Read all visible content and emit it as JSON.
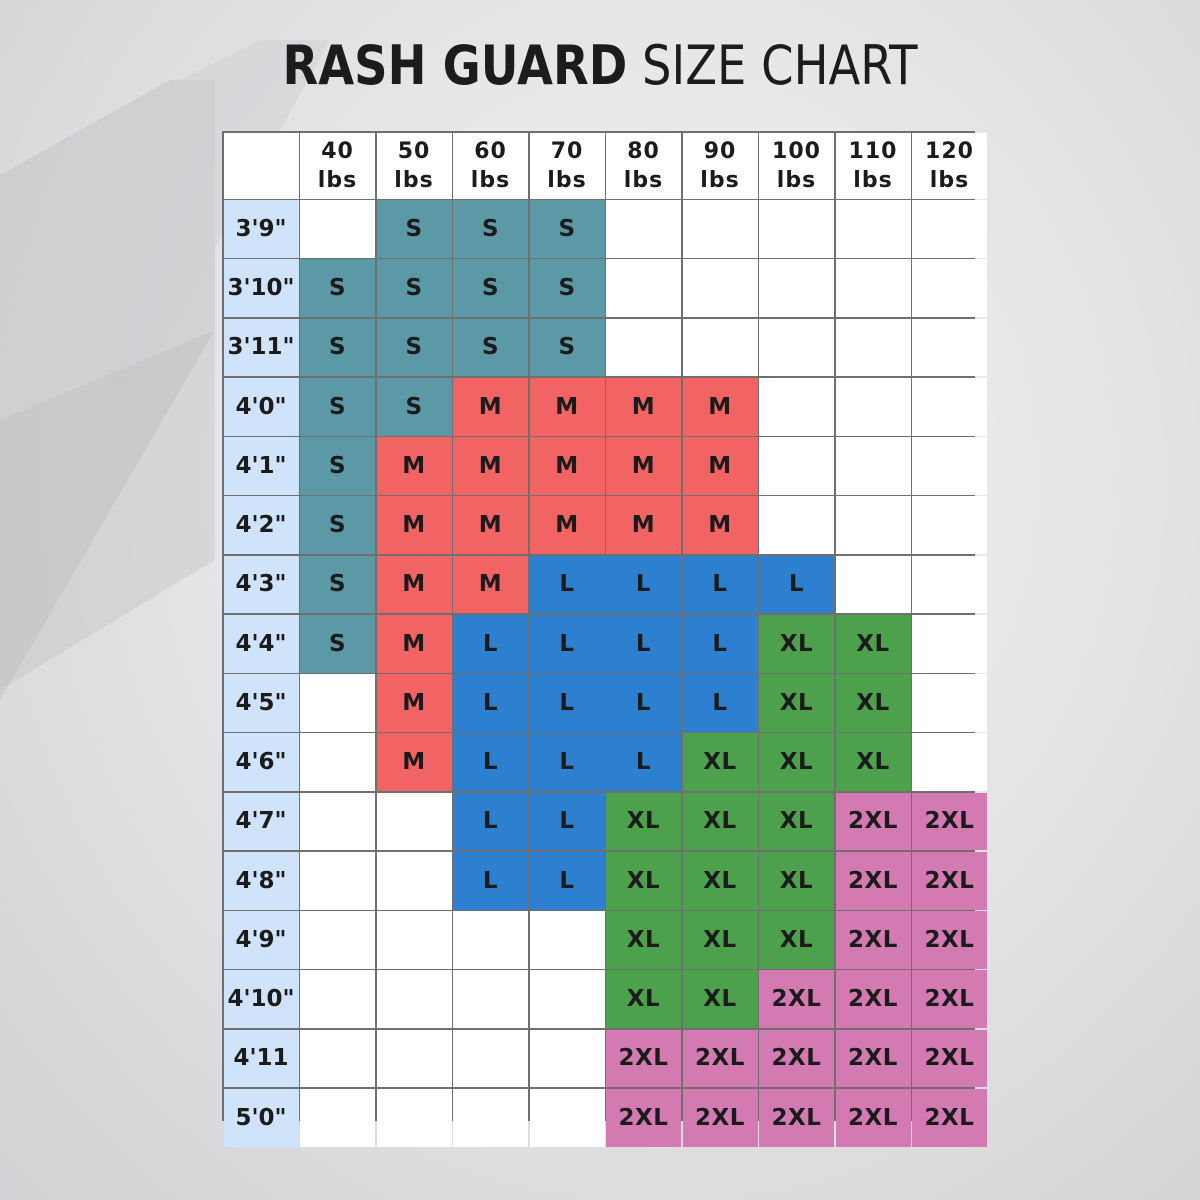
{
  "title": {
    "bold": "RASH GUARD",
    "light": "SIZE CHART"
  },
  "colors": {
    "S": "#5b99a6",
    "M": "#f26463",
    "L": "#2d7fd0",
    "XL": "#4ea14c",
    "2XL": "#d47ab3",
    "row_header": "#cfe3fb",
    "empty": "#ffffff",
    "grid_line": "#6f6f6f"
  },
  "chart_data": {
    "type": "table",
    "columns": [
      {
        "value": "40",
        "unit": "lbs"
      },
      {
        "value": "50",
        "unit": "lbs"
      },
      {
        "value": "60",
        "unit": "lbs"
      },
      {
        "value": "70",
        "unit": "lbs"
      },
      {
        "value": "80",
        "unit": "lbs"
      },
      {
        "value": "90",
        "unit": "lbs"
      },
      {
        "value": "100",
        "unit": "lbs"
      },
      {
        "value": "110",
        "unit": "lbs"
      },
      {
        "value": "120",
        "unit": "lbs"
      }
    ],
    "rows": [
      {
        "height": "3'9\"",
        "cells": [
          "",
          "S",
          "S",
          "S",
          "",
          "",
          "",
          "",
          ""
        ]
      },
      {
        "height": "3'10\"",
        "cells": [
          "S",
          "S",
          "S",
          "S",
          "",
          "",
          "",
          "",
          ""
        ]
      },
      {
        "height": "3'11\"",
        "cells": [
          "S",
          "S",
          "S",
          "S",
          "",
          "",
          "",
          "",
          ""
        ]
      },
      {
        "height": "4'0\"",
        "cells": [
          "S",
          "S",
          "M",
          "M",
          "M",
          "M",
          "",
          "",
          ""
        ]
      },
      {
        "height": "4'1\"",
        "cells": [
          "S",
          "M",
          "M",
          "M",
          "M",
          "M",
          "",
          "",
          ""
        ]
      },
      {
        "height": "4'2\"",
        "cells": [
          "S",
          "M",
          "M",
          "M",
          "M",
          "M",
          "",
          "",
          ""
        ]
      },
      {
        "height": "4'3\"",
        "cells": [
          "S",
          "M",
          "M",
          "L",
          "L",
          "L",
          "L",
          "",
          ""
        ]
      },
      {
        "height": "4'4\"",
        "cells": [
          "S",
          "M",
          "L",
          "L",
          "L",
          "L",
          "XL",
          "XL",
          ""
        ]
      },
      {
        "height": "4'5\"",
        "cells": [
          "",
          "M",
          "L",
          "L",
          "L",
          "L",
          "XL",
          "XL",
          ""
        ]
      },
      {
        "height": "4'6\"",
        "cells": [
          "",
          "M",
          "L",
          "L",
          "L",
          "XL",
          "XL",
          "XL",
          ""
        ]
      },
      {
        "height": "4'7\"",
        "cells": [
          "",
          "",
          "L",
          "L",
          "XL",
          "XL",
          "XL",
          "2XL",
          "2XL"
        ]
      },
      {
        "height": "4'8\"",
        "cells": [
          "",
          "",
          "L",
          "L",
          "XL",
          "XL",
          "XL",
          "2XL",
          "2XL"
        ]
      },
      {
        "height": "4'9\"",
        "cells": [
          "",
          "",
          "",
          "",
          "XL",
          "XL",
          "XL",
          "2XL",
          "2XL"
        ]
      },
      {
        "height": "4'10\"",
        "cells": [
          "",
          "",
          "",
          "",
          "XL",
          "XL",
          "2XL",
          "2XL",
          "2XL"
        ]
      },
      {
        "height": "4'11",
        "cells": [
          "",
          "",
          "",
          "",
          "2XL",
          "2XL",
          "2XL",
          "2XL",
          "2XL"
        ]
      },
      {
        "height": "5'0\"",
        "cells": [
          "",
          "",
          "",
          "",
          "2XL",
          "2XL",
          "2XL",
          "2XL",
          "2XL"
        ]
      }
    ]
  }
}
